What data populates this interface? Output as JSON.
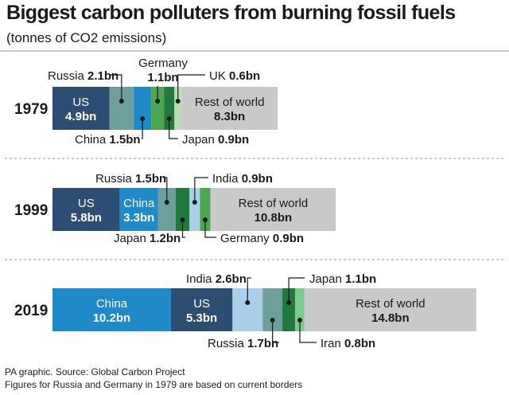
{
  "title": "Biggest carbon polluters from burning fossil fuels",
  "subtitle": "(tonnes of CO2 emissions)",
  "footer": {
    "source": "PA graphic. Source: Global Carbon Project",
    "note": "Figures for Russia and Germany in 1979 are based on current borders"
  },
  "colors": {
    "US": "#2b4e72",
    "China": "#1f8ac9",
    "India": "#a9d0e8",
    "Russia": "#6f9f9c",
    "Japan": "#1f7a3c",
    "Germany": "#4ea64f",
    "UK": "#b7dfb2",
    "Iran": "#7dcb8c",
    "Rest of world": "#c9c9c9"
  },
  "chart_data": {
    "type": "bar",
    "orientation": "horizontal-stacked",
    "unit": "bn",
    "rows": [
      {
        "year": "1979",
        "segments": [
          {
            "name": "US",
            "value": 4.9,
            "label": "US",
            "value_label": "4.9bn"
          },
          {
            "name": "Russia",
            "value": 2.1,
            "label": "Russia",
            "value_label": "2.1bn"
          },
          {
            "name": "China",
            "value": 1.5,
            "label": "China",
            "value_label": "1.5bn"
          },
          {
            "name": "Germany",
            "value": 1.1,
            "label": "Germany",
            "value_label": "1.1bn"
          },
          {
            "name": "Japan",
            "value": 0.9,
            "label": "Japan",
            "value_label": "0.9bn"
          },
          {
            "name": "UK",
            "value": 0.6,
            "label": "UK",
            "value_label": "0.6bn"
          },
          {
            "name": "Rest of world",
            "value": 8.3,
            "label": "Rest of world",
            "value_label": "8.3bn"
          }
        ]
      },
      {
        "year": "1999",
        "segments": [
          {
            "name": "US",
            "value": 5.8,
            "label": "US",
            "value_label": "5.8bn"
          },
          {
            "name": "China",
            "value": 3.3,
            "label": "China",
            "value_label": "3.3bn"
          },
          {
            "name": "Russia",
            "value": 1.5,
            "label": "Russia",
            "value_label": "1.5bn"
          },
          {
            "name": "Japan",
            "value": 1.2,
            "label": "Japan",
            "value_label": "1.2bn"
          },
          {
            "name": "India",
            "value": 0.9,
            "label": "India",
            "value_label": "0.9bn"
          },
          {
            "name": "Germany",
            "value": 0.9,
            "label": "Germany",
            "value_label": "0.9bn"
          },
          {
            "name": "Rest of world",
            "value": 10.8,
            "label": "Rest of world",
            "value_label": "10.8bn"
          }
        ]
      },
      {
        "year": "2019",
        "segments": [
          {
            "name": "China",
            "value": 10.2,
            "label": "China",
            "value_label": "10.2bn"
          },
          {
            "name": "US",
            "value": 5.3,
            "label": "US",
            "value_label": "5.3bn"
          },
          {
            "name": "India",
            "value": 2.6,
            "label": "India",
            "value_label": "2.6bn"
          },
          {
            "name": "Russia",
            "value": 1.7,
            "label": "Russia",
            "value_label": "1.7bn"
          },
          {
            "name": "Japan",
            "value": 1.1,
            "label": "Japan",
            "value_label": "1.1bn"
          },
          {
            "name": "Iran",
            "value": 0.8,
            "label": "Iran",
            "value_label": "0.8bn"
          },
          {
            "name": "Rest of world",
            "value": 14.8,
            "label": "Rest of world",
            "value_label": "14.8bn"
          }
        ]
      }
    ]
  }
}
